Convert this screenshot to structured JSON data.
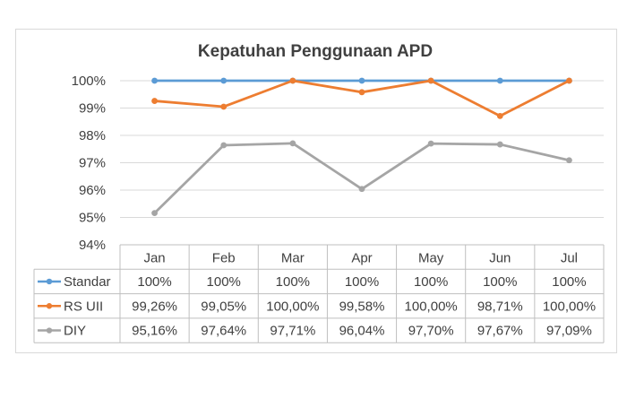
{
  "chart_data": {
    "type": "line",
    "title": "Kepatuhan Penggunaan APD",
    "categories": [
      "Jan",
      "Feb",
      "Mar",
      "Apr",
      "May",
      "Jun",
      "Jul"
    ],
    "ylim": [
      94,
      100
    ],
    "yticks": [
      94,
      95,
      96,
      97,
      98,
      99,
      100
    ],
    "ytick_labels": [
      "94%",
      "95%",
      "96%",
      "97%",
      "98%",
      "99%",
      "100%"
    ],
    "grid": true,
    "legend": "data-table",
    "series": [
      {
        "name": "Standar",
        "color": "#5b9bd5",
        "values": [
          100,
          100,
          100,
          100,
          100,
          100,
          100
        ],
        "labels": [
          "100%",
          "100%",
          "100%",
          "100%",
          "100%",
          "100%",
          "100%"
        ]
      },
      {
        "name": "RS UII",
        "color": "#ed7d31",
        "values": [
          99.26,
          99.05,
          100.0,
          99.58,
          100.0,
          98.71,
          100.0
        ],
        "labels": [
          "99,26%",
          "99,05%",
          "100,00%",
          "99,58%",
          "100,00%",
          "98,71%",
          "100,00%"
        ]
      },
      {
        "name": "DIY",
        "color": "#a5a5a5",
        "values": [
          95.16,
          97.64,
          97.71,
          96.04,
          97.7,
          97.67,
          97.09
        ],
        "labels": [
          "95,16%",
          "97,64%",
          "97,71%",
          "96,04%",
          "97,70%",
          "97,67%",
          "97,09%"
        ]
      }
    ]
  }
}
